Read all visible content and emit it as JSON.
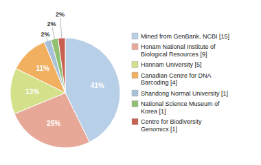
{
  "chart_data": {
    "type": "pie",
    "categories": [
      "Mined from GenBank, NCBI [15]",
      "Honam National Institute of\nBiological Resources [9]",
      "Hannam University [5]",
      "Canadian Centre for DNA\nBarcoding [4]",
      "Shandong Normal University [1]",
      "National Science Museum of\nKorea [1]",
      "Centre for Biodiversity\nGenomics [1]"
    ],
    "values": [
      41,
      25,
      13,
      11,
      2,
      2,
      2
    ],
    "value_labels": [
      "41%",
      "25%",
      "13%",
      "11%",
      "2%",
      "2%",
      "2%"
    ],
    "colors": [
      "#b8cfe8",
      "#e8a898",
      "#d4e08a",
      "#f0b060",
      "#a8c0d8",
      "#90c070",
      "#c86050"
    ],
    "data_labels": true,
    "legend": "right"
  }
}
